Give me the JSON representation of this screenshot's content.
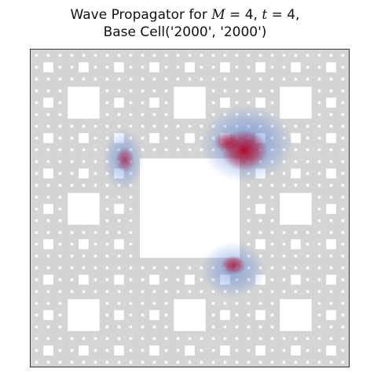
{
  "title": {
    "line1_prefix": "Wave Propagator for ",
    "m_symbol": "M",
    "m_eq": " = 4, ",
    "t_symbol": "t",
    "t_eq": " = 4,",
    "line2": "Base Cell('2000', '2000')"
  },
  "colors": {
    "lattice": "#d4d4d4",
    "dot": "#ffffff",
    "hole": "#ffffff",
    "positive": "#b40426",
    "negative": "#3b6fd8",
    "frame": "#333333"
  }
}
